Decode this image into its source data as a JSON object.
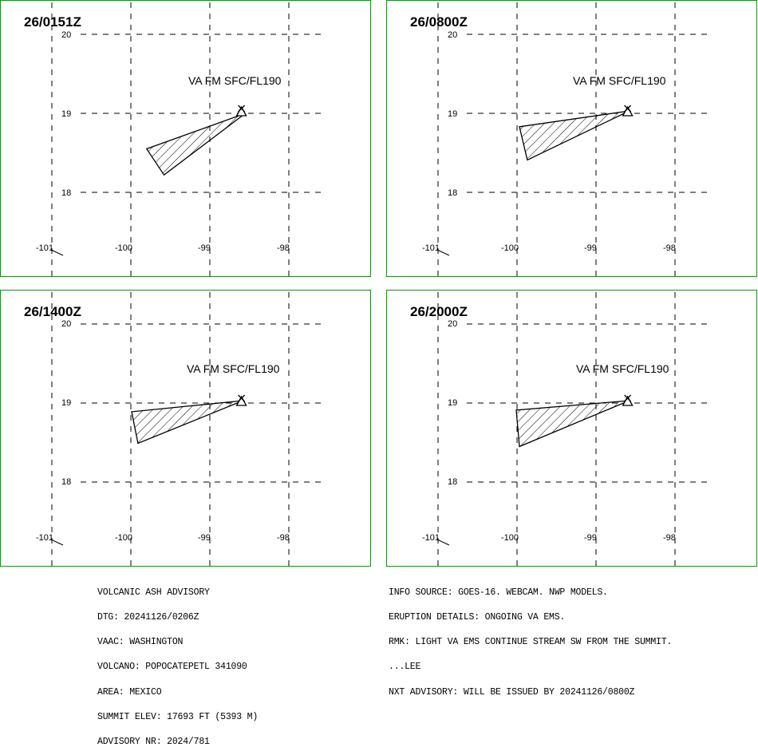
{
  "panels": [
    {
      "time": "26/0151Z",
      "ash_label": "VA FM SFC/FL190",
      "lat_labels": [
        "20",
        "19",
        "18"
      ],
      "lon_labels": [
        "-101",
        "-100",
        "-99",
        "-98"
      ],
      "ash_polygon": [
        [
          -98.55,
          19.0
        ],
        [
          -99.58,
          18.22
        ],
        [
          -99.8,
          18.55
        ]
      ]
    },
    {
      "time": "26/0800Z",
      "ash_label": "VA FM SFC/FL190",
      "lat_labels": [
        "20",
        "19",
        "18"
      ],
      "lon_labels": [
        "-101",
        "-100",
        "-99",
        "-98"
      ],
      "ash_polygon": [
        [
          -98.58,
          19.03
        ],
        [
          -99.87,
          18.41
        ],
        [
          -99.97,
          18.83
        ]
      ]
    },
    {
      "time": "26/1400Z",
      "ash_label": "VA FM SFC/FL190",
      "lat_labels": [
        "20",
        "19",
        "18"
      ],
      "lon_labels": [
        "-101",
        "-100",
        "-99",
        "-98"
      ],
      "ash_polygon": [
        [
          -98.58,
          19.03
        ],
        [
          -99.91,
          18.49
        ],
        [
          -99.99,
          18.89
        ]
      ]
    },
    {
      "time": "26/2000Z",
      "ash_label": "VA FM SFC/FL190",
      "lat_labels": [
        "20",
        "19",
        "18"
      ],
      "lon_labels": [
        "-101",
        "-100",
        "-99",
        "-98"
      ],
      "ash_polygon": [
        [
          -98.58,
          19.03
        ],
        [
          -99.97,
          18.45
        ],
        [
          -100.01,
          18.91
        ]
      ]
    }
  ],
  "volcano": {
    "name": "POPOCATEPETL",
    "lon": -98.6,
    "lat": 19.02,
    "icon": "volcano-triangle-icon"
  },
  "advisory_left": [
    "VOLCANIC ASH ADVISORY",
    "DTG: 20241126/0206Z",
    "VAAC: WASHINGTON",
    "VOLCANO: POPOCATEPETL 341090",
    "AREA: MEXICO",
    "SUMMIT ELEV: 17693 FT (5393 M)",
    "ADVISORY NR: 2024/781"
  ],
  "advisory_right": [
    "INFO SOURCE: GOES-16. WEBCAM. NWP MODELS.",
    "ERUPTION DETAILS: ONGOING VA EMS.",
    "RMK: LIGHT VA EMS CONTINUE STREAM SW FROM THE SUMMIT.",
    "...LEE",
    "NXT ADVISORY: WILL BE ISSUED BY 20241126/0800Z"
  ],
  "colors": {
    "panel_border": "#1f8a1f",
    "grid": "#000000",
    "ash_hatch": "#000000"
  }
}
